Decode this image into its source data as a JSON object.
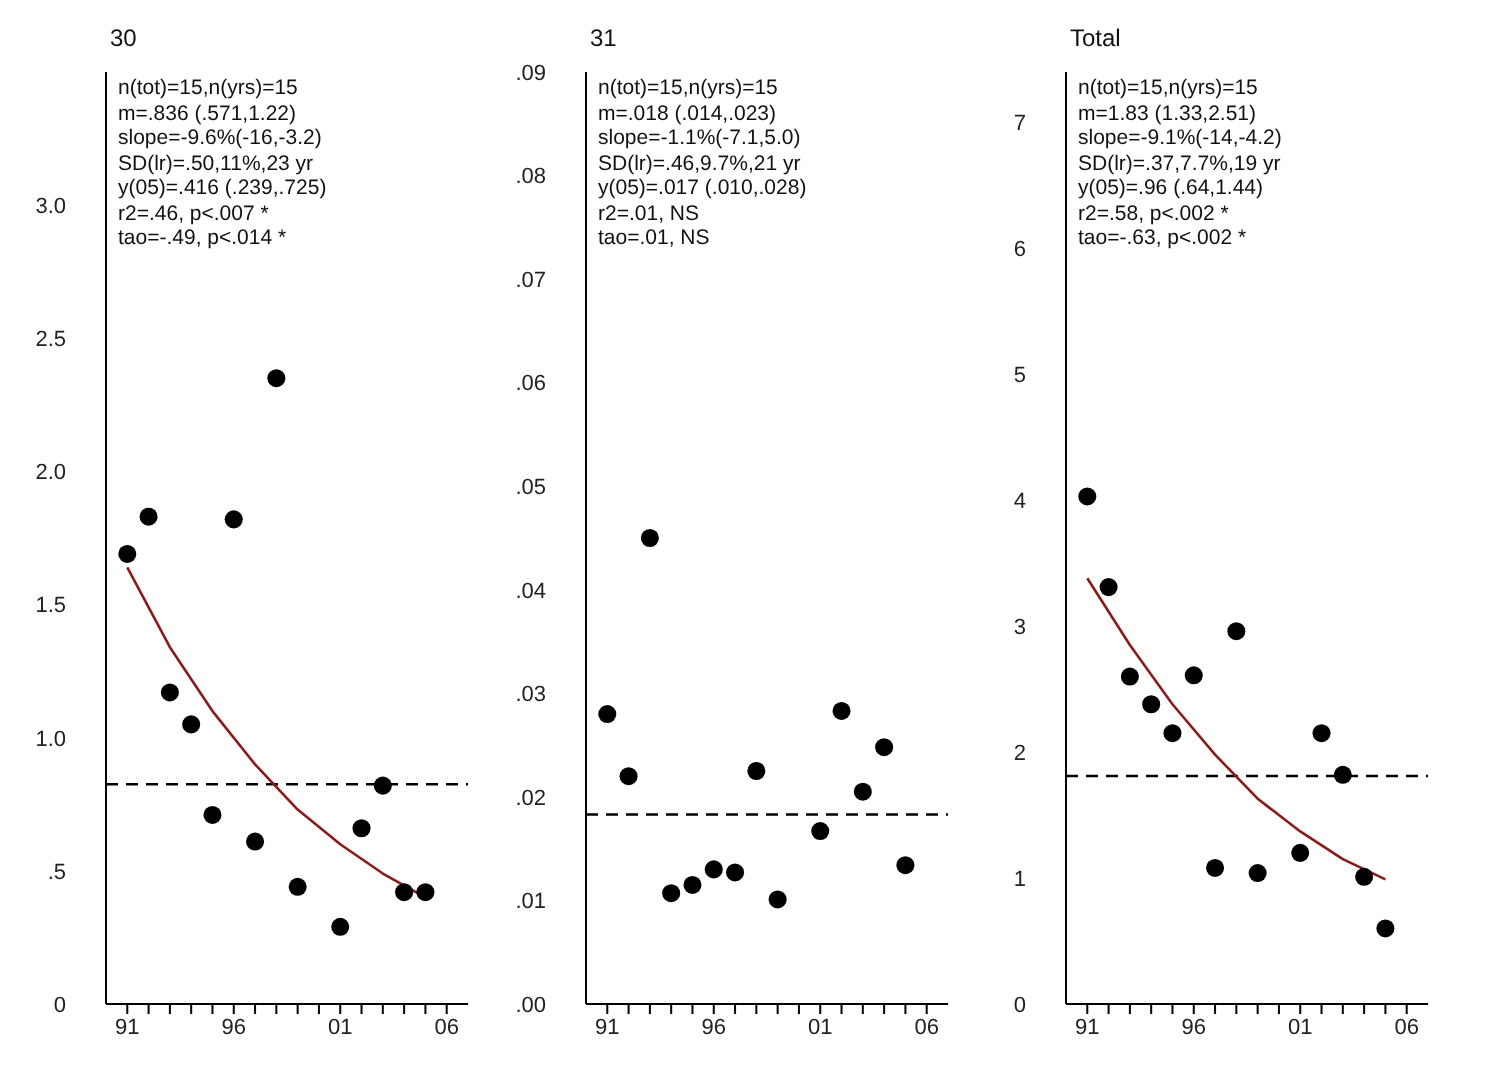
{
  "chart_data": [
    {
      "type": "scatter",
      "title": "30",
      "marker": "circle",
      "x": [
        1991,
        1992,
        1993,
        1994,
        1995,
        1996,
        1997,
        1998,
        1999,
        2001,
        2002,
        2003,
        2004,
        2005
      ],
      "series": [
        {
          "type": "line",
          "marker": "none",
          "color": "#8b1a1a",
          "x": [
            1991,
            1993,
            1995,
            1997,
            1999,
            2001,
            2003,
            2005
          ],
          "values": [
            1.64,
            1.34,
            1.1,
            0.9,
            0.73,
            0.6,
            0.49,
            0.4
          ]
        },
        {
          "color": "#000000",
          "values": [
            1.69,
            1.83,
            1.17,
            1.05,
            0.71,
            1.82,
            0.61,
            2.35,
            0.44,
            0.29,
            0.66,
            0.82,
            0.42,
            0.42
          ]
        }
      ],
      "xlim": [
        1990,
        2007
      ],
      "xticks": [
        {
          "value": 1991,
          "label": "91"
        },
        {
          "value": 1992,
          "label": null
        },
        {
          "value": 1993,
          "label": null
        },
        {
          "value": 1994,
          "label": null
        },
        {
          "value": 1995,
          "label": null
        },
        {
          "value": 1996,
          "label": "96"
        },
        {
          "value": 1997,
          "label": null
        },
        {
          "value": 1998,
          "label": null
        },
        {
          "value": 1999,
          "label": null
        },
        {
          "value": 2000,
          "label": null
        },
        {
          "value": 2001,
          "label": "01"
        },
        {
          "value": 2002,
          "label": null
        },
        {
          "value": 2003,
          "label": null
        },
        {
          "value": 2004,
          "label": null
        },
        {
          "value": 2005,
          "label": null
        },
        {
          "value": 2006,
          "label": "06"
        }
      ],
      "ylim": [
        0,
        3.5
      ],
      "yticks": [
        0,
        {
          "value": 0.5,
          "label": ".5"
        },
        {
          "value": 1,
          "label": "1.0"
        },
        {
          "value": 1.5,
          "label": "1.5"
        },
        {
          "value": 2,
          "label": "2.0"
        },
        {
          "value": 2.5,
          "label": "2.5"
        },
        {
          "value": 3,
          "label": "3.0"
        }
      ],
      "ref_lines": [
        {
          "axis": "y",
          "value": 0.825,
          "color": "#000000",
          "line_style": "dashed"
        }
      ],
      "annotations": [
        "n(tot)=15,n(yrs)=15",
        "m=.836 (.571,1.22)",
        "slope=-9.6%(-16,-3.2)",
        "SD(lr)=.50,11%,23 yr",
        "y(05)=.416 (.239,.725)",
        "r2=.46, p<.007 *",
        "tao=-.49, p<.014 *"
      ]
    },
    {
      "type": "scatter",
      "title": "31",
      "marker": "circle",
      "x": [
        1991,
        1992,
        1993,
        1994,
        1995,
        1996,
        1997,
        1998,
        1999,
        2001,
        2002,
        2003,
        2004,
        2005
      ],
      "series": [
        {
          "color": "#000000",
          "values": [
            0.028,
            0.022,
            0.045,
            0.0107,
            0.0115,
            0.013,
            0.0127,
            0.0225,
            0.0101,
            0.0167,
            0.0283,
            0.0205,
            0.0248,
            0.0134
          ]
        }
      ],
      "xlim": [
        1990,
        2007
      ],
      "xticks": [
        {
          "value": 1991,
          "label": "91"
        },
        {
          "value": 1992,
          "label": null
        },
        {
          "value": 1993,
          "label": null
        },
        {
          "value": 1994,
          "label": null
        },
        {
          "value": 1995,
          "label": null
        },
        {
          "value": 1996,
          "label": "96"
        },
        {
          "value": 1997,
          "label": null
        },
        {
          "value": 1998,
          "label": null
        },
        {
          "value": 1999,
          "label": null
        },
        {
          "value": 2000,
          "label": null
        },
        {
          "value": 2001,
          "label": "01"
        },
        {
          "value": 2002,
          "label": null
        },
        {
          "value": 2003,
          "label": null
        },
        {
          "value": 2004,
          "label": null
        },
        {
          "value": 2005,
          "label": null
        },
        {
          "value": 2006,
          "label": "06"
        }
      ],
      "ylim": [
        0,
        0.09
      ],
      "yticks": [
        {
          "value": 0,
          "label": ".00"
        },
        {
          "value": 0.01,
          "label": ".01"
        },
        {
          "value": 0.02,
          "label": ".02"
        },
        {
          "value": 0.03,
          "label": ".03"
        },
        {
          "value": 0.04,
          "label": ".04"
        },
        {
          "value": 0.05,
          "label": ".05"
        },
        {
          "value": 0.06,
          "label": ".06"
        },
        {
          "value": 0.07,
          "label": ".07"
        },
        {
          "value": 0.08,
          "label": ".08"
        },
        {
          "value": 0.09,
          "label": ".09"
        }
      ],
      "ref_lines": [
        {
          "axis": "y",
          "value": 0.0183,
          "color": "#000000",
          "line_style": "dashed"
        }
      ],
      "annotations": [
        "n(tot)=15,n(yrs)=15",
        "m=.018 (.014,.023)",
        "slope=-1.1%(-7.1,5.0)",
        "SD(lr)=.46,9.7%,21 yr",
        "y(05)=.017 (.010,.028)",
        "r2=.01, NS",
        "tao=.01, NS"
      ]
    },
    {
      "type": "scatter",
      "title": "Total",
      "marker": "circle",
      "x": [
        1991,
        1992,
        1993,
        1994,
        1995,
        1996,
        1997,
        1998,
        1999,
        2001,
        2002,
        2003,
        2004,
        2005
      ],
      "series": [
        {
          "type": "line",
          "marker": "none",
          "color": "#8b1a1a",
          "x": [
            1991,
            1993,
            1995,
            1997,
            1999,
            2001,
            2003,
            2005
          ],
          "values": [
            3.38,
            2.85,
            2.38,
            1.98,
            1.63,
            1.37,
            1.15,
            0.99
          ]
        },
        {
          "color": "#000000",
          "values": [
            4.03,
            3.31,
            2.6,
            2.38,
            2.15,
            2.61,
            1.08,
            2.96,
            1.04,
            1.2,
            2.15,
            1.82,
            1.01,
            0.6
          ]
        }
      ],
      "xlim": [
        1990,
        2007
      ],
      "xticks": [
        {
          "value": 1991,
          "label": "91"
        },
        {
          "value": 1992,
          "label": null
        },
        {
          "value": 1993,
          "label": null
        },
        {
          "value": 1994,
          "label": null
        },
        {
          "value": 1995,
          "label": null
        },
        {
          "value": 1996,
          "label": "96"
        },
        {
          "value": 1997,
          "label": null
        },
        {
          "value": 1998,
          "label": null
        },
        {
          "value": 1999,
          "label": null
        },
        {
          "value": 2000,
          "label": null
        },
        {
          "value": 2001,
          "label": "01"
        },
        {
          "value": 2002,
          "label": null
        },
        {
          "value": 2003,
          "label": null
        },
        {
          "value": 2004,
          "label": null
        },
        {
          "value": 2005,
          "label": null
        },
        {
          "value": 2006,
          "label": "06"
        }
      ],
      "ylim": [
        0,
        7.4
      ],
      "yticks": [
        0,
        1,
        2,
        3,
        4,
        5,
        6,
        7
      ],
      "ref_lines": [
        {
          "axis": "y",
          "value": 1.81,
          "color": "#000000",
          "line_style": "dashed"
        }
      ],
      "annotations": [
        "n(tot)=15,n(yrs)=15",
        "m=1.83 (1.33,2.51)",
        "slope=-9.1%(-14,-4.2)",
        "SD(lr)=.37,7.7%,19 yr",
        "y(05)=.96 (.64,1.44)",
        "r2=.58, p<.002 *",
        "tao=-.63, p<.002 *"
      ]
    }
  ]
}
